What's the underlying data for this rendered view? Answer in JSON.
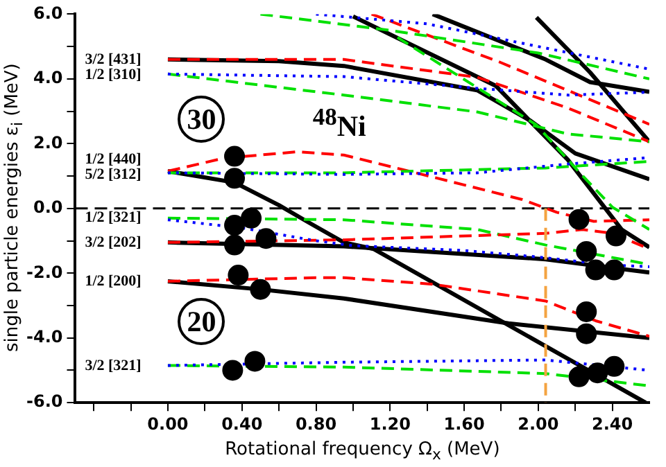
{
  "chart_data": {
    "type": "line",
    "xlabel": "Rotational frequency Ω$_{x}$ (MeV)",
    "ylabel": "single particle energies ε$_{i}$ (MeV)",
    "xlim": [
      -0.5,
      2.6
    ],
    "ylim": [
      -6,
      6
    ],
    "xticks": [
      {
        "value": -0.4,
        "label": null
      },
      {
        "value": -0.2,
        "label": null
      },
      {
        "value": 0,
        "label": "0.00"
      },
      {
        "value": 0.2,
        "label": null
      },
      {
        "value": 0.4,
        "label": "0.40"
      },
      {
        "value": 0.6,
        "label": null
      },
      {
        "value": 0.8,
        "label": "0.80"
      },
      {
        "value": 1.0,
        "label": null
      },
      {
        "value": 1.2,
        "label": "1.20"
      },
      {
        "value": 1.4,
        "label": null
      },
      {
        "value": 1.6,
        "label": "1.60"
      },
      {
        "value": 1.8,
        "label": null
      },
      {
        "value": 2.0,
        "label": "2.00"
      },
      {
        "value": 2.2,
        "label": null
      },
      {
        "value": 2.4,
        "label": "2.40"
      }
    ],
    "yticks": [
      {
        "value": -6,
        "label": "-6.0"
      },
      {
        "value": -5,
        "label": null
      },
      {
        "value": -4,
        "label": "-4.0"
      },
      {
        "value": -3,
        "label": null
      },
      {
        "value": -2,
        "label": "-2.0"
      },
      {
        "value": -1,
        "label": null
      },
      {
        "value": 0,
        "label": "0.0"
      },
      {
        "value": 1,
        "label": null
      },
      {
        "value": 2,
        "label": "2.0"
      },
      {
        "value": 3,
        "label": null
      },
      {
        "value": 4,
        "label": "4.0"
      },
      {
        "value": 5,
        "label": null
      },
      {
        "value": 6,
        "label": "6.0"
      }
    ],
    "grid": false,
    "legend": false,
    "ref_lines": [
      {
        "axis": "y",
        "value": 0,
        "color": "#000000",
        "line_style": "dashed"
      }
    ],
    "series": [
      {
        "color": "#000000",
        "line_style": "solid",
        "x": [
          0,
          0.6,
          0.95,
          1.67,
          1.96,
          2.2,
          2.6
        ],
        "values": [
          4.6,
          4.55,
          4.4,
          3.65,
          2.7,
          1.7,
          0.9
        ]
      },
      {
        "color": "#ff0000",
        "line_style": "dashed",
        "x": [
          0,
          0.95,
          1.67,
          2.16,
          2.6
        ],
        "values": [
          4.6,
          4.6,
          4.05,
          3.1,
          2.06
        ]
      },
      {
        "color": "#0000ff",
        "line_style": "dotted",
        "x": [
          0,
          0.95,
          1.67,
          2.16,
          2.6
        ],
        "values": [
          4.15,
          4.07,
          3.71,
          3.5,
          3.59
        ]
      },
      {
        "color": "#00e000",
        "line_style": "dashed",
        "x": [
          0,
          0.95,
          1.67,
          2.16,
          2.6
        ],
        "values": [
          4.15,
          3.5,
          2.98,
          2.3,
          2.06
        ]
      },
      {
        "color": "#ff0000",
        "line_style": "dashed",
        "x": [
          0,
          0.3,
          0.7,
          0.95,
          1.43,
          1.91,
          2.1,
          2.3,
          2.6
        ],
        "values": [
          1.15,
          1.55,
          1.75,
          1.65,
          0.97,
          0.28,
          -0.12,
          -0.4,
          -0.35
        ]
      },
      {
        "color": "#0000ff",
        "line_style": "dotted",
        "x": [
          0,
          0.95,
          1.67,
          2.16,
          2.6
        ],
        "values": [
          1.1,
          1.05,
          1.1,
          1.37,
          1.57
        ]
      },
      {
        "color": "#00e000",
        "line_style": "dashed",
        "x": [
          0,
          0.95,
          2.04,
          2.6
        ],
        "values": [
          1.1,
          1.1,
          1.25,
          1.45
        ]
      },
      {
        "color": "#000000",
        "line_style": "solid",
        "x": [
          0,
          0.36,
          0.6,
          0.75,
          0.95,
          1.11,
          2.58
        ],
        "values": [
          1.15,
          0.8,
          0.1,
          -0.4,
          -1.05,
          -1.25,
          -6.0
        ]
      },
      {
        "color": "#00e000",
        "line_style": "dashed",
        "x": [
          0,
          0.95,
          1.67,
          2.04,
          2.6
        ],
        "values": [
          -0.3,
          -0.35,
          -0.65,
          -1.13,
          -1.73
        ]
      },
      {
        "color": "#0000ff",
        "line_style": "dotted",
        "x": [
          0,
          0.4,
          0.8,
          1.0,
          1.6,
          2.0,
          2.4,
          2.6
        ],
        "values": [
          -0.35,
          -0.6,
          -1.0,
          -1.15,
          -1.3,
          -1.5,
          -1.75,
          -1.8
        ]
      },
      {
        "color": "#000000",
        "line_style": "solid",
        "x": [
          0,
          0.95,
          2.04,
          2.6
        ],
        "values": [
          -1.05,
          -1.17,
          -1.57,
          -1.98
        ]
      },
      {
        "color": "#ff0000",
        "line_style": "dashed",
        "x": [
          0,
          0.95,
          2.04,
          2.24,
          2.4,
          2.6
        ],
        "values": [
          -1.05,
          -0.97,
          -0.77,
          -0.65,
          -0.77,
          -1.25
        ]
      },
      {
        "color": "#ff0000",
        "line_style": "dashed",
        "x": [
          0,
          0.8,
          0.95,
          1.43,
          2.04,
          2.31,
          2.6
        ],
        "values": [
          -2.25,
          -2.14,
          -2.14,
          -2.34,
          -2.86,
          -3.47,
          -3.95
        ]
      },
      {
        "color": "#000000",
        "line_style": "solid",
        "x": [
          0,
          0.5,
          0.95,
          1.84,
          2.6
        ],
        "values": [
          -2.25,
          -2.5,
          -2.78,
          -3.55,
          -4.0
        ]
      },
      {
        "color": "#0000ff",
        "line_style": "dotted",
        "x": [
          0,
          0.95,
          2.04,
          2.6
        ],
        "values": [
          -4.85,
          -4.75,
          -4.68,
          -5.0
        ]
      },
      {
        "color": "#00e000",
        "line_style": "dashed",
        "x": [
          0,
          0.95,
          2.04,
          2.6
        ],
        "values": [
          -4.85,
          -4.9,
          -5.1,
          -5.48
        ]
      },
      {
        "color": "#000000",
        "line_style": "solid",
        "x": [
          1.0,
          1.77,
          2.16,
          2.45,
          2.6
        ],
        "values": [
          5.93,
          3.79,
          1.5,
          -0.65,
          -1.2
        ]
      },
      {
        "color": "#00e000",
        "line_style": "dashed",
        "x": [
          1.24,
          1.99,
          2.2,
          2.4,
          2.6
        ],
        "values": [
          5.28,
          2.58,
          1.25,
          0.04,
          -0.65
        ]
      },
      {
        "color": "#000000",
        "line_style": "solid",
        "x": [
          1.43,
          2.04,
          2.28,
          2.6
        ],
        "values": [
          6.0,
          4.6,
          3.9,
          3.6
        ]
      },
      {
        "color": "#000000",
        "line_style": "solid",
        "x": [
          1.99,
          2.28,
          2.6
        ],
        "values": [
          5.9,
          4.2,
          2.06
        ]
      },
      {
        "color": "#ff0000",
        "line_style": "dashed",
        "x": [
          1.1,
          1.8,
          2.6
        ],
        "values": [
          6.0,
          4.5,
          2.6
        ]
      },
      {
        "color": "#0000ff",
        "line_style": "dotted",
        "x": [
          0.8,
          1.4,
          2.0,
          2.6
        ],
        "values": [
          6.0,
          5.7,
          5.0,
          4.3
        ]
      },
      {
        "color": "#00e000",
        "line_style": "dashed",
        "x": [
          0.5,
          1.2,
          2.0,
          2.6
        ],
        "values": [
          6.0,
          5.5,
          4.8,
          4.0
        ]
      },
      {
        "color": "#f4a341",
        "line_style": "dashed",
        "x": [
          2.04,
          2.04
        ],
        "values": [
          0,
          -6
        ]
      },
      {
        "type": "scatter",
        "marker": "circle",
        "color": "#000000",
        "x": [
          0.36,
          0.36,
          0.36,
          0.45,
          0.36,
          0.53,
          0.38,
          0.5,
          0.35,
          0.47,
          2.22,
          2.42,
          2.26,
          2.31,
          2.41,
          2.26,
          2.26,
          2.22,
          2.32,
          2.41
        ],
        "values": [
          1.61,
          0.93,
          -0.52,
          -0.3,
          -1.13,
          -0.93,
          -2.06,
          -2.5,
          -5.0,
          -4.72,
          -0.34,
          -0.85,
          -1.33,
          -1.9,
          -1.9,
          -3.19,
          -3.87,
          -5.2,
          -5.08,
          -4.88
        ]
      }
    ],
    "annotations": [
      "3/2 [431]",
      "1/2 [310]",
      "1/2 [440]",
      "5/2 [312]",
      "1/2 [321]",
      "3/2 [202]",
      "1/2 [200]",
      "3/2 [321]",
      "30",
      "20",
      "$^{48}$Ni"
    ]
  }
}
